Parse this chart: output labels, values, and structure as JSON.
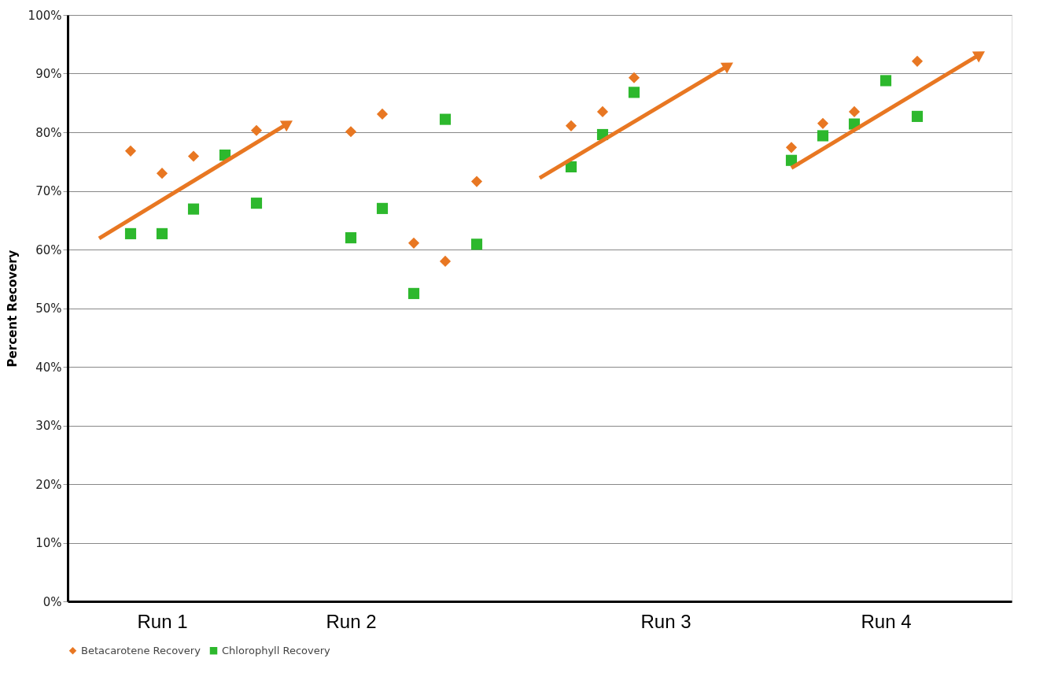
{
  "chart_data": {
    "type": "scatter",
    "ylabel": "Percent Recovery",
    "categories": [
      null,
      null,
      "Run 1",
      null,
      null,
      null,
      null,
      null,
      "Run 2",
      null,
      null,
      null,
      null,
      null,
      null,
      null,
      null,
      null,
      "Run 3",
      null,
      null,
      null,
      null,
      null,
      null,
      "Run 4",
      null,
      null,
      null
    ],
    "ylim": [
      0,
      100
    ],
    "yticks": [
      {
        "value": 0,
        "label": "0%"
      },
      {
        "value": 10,
        "label": "10%"
      },
      {
        "value": 20,
        "label": "20%"
      },
      {
        "value": 30,
        "label": "30%"
      },
      {
        "value": 40,
        "label": "40%"
      },
      {
        "value": 50,
        "label": "50%"
      },
      {
        "value": 60,
        "label": "60%"
      },
      {
        "value": 70,
        "label": "70%"
      },
      {
        "value": 80,
        "label": "80%"
      },
      {
        "value": 90,
        "label": "90%"
      },
      {
        "value": 100,
        "label": "100%"
      }
    ],
    "grid": "y",
    "legend": "bottom",
    "series": [
      {
        "name": "Betacarotene Recovery",
        "color": "#e87722",
        "marker": "diamond",
        "values": [
          null,
          76.8,
          73.0,
          75.9,
          null,
          80.3,
          null,
          null,
          80.1,
          83.1,
          61.1,
          58.0,
          71.6,
          null,
          null,
          81.1,
          83.5,
          89.3,
          null,
          null,
          null,
          null,
          77.4,
          81.5,
          83.5,
          null,
          92.1,
          null,
          null
        ]
      },
      {
        "name": "Chlorophyll Recovery",
        "color": "#2db82d",
        "marker": "square",
        "values": [
          null,
          62.7,
          62.7,
          66.9,
          76.1,
          67.9,
          null,
          null,
          62.0,
          67.0,
          52.5,
          82.2,
          60.9,
          null,
          null,
          74.1,
          79.6,
          86.8,
          null,
          null,
          null,
          null,
          75.2,
          79.4,
          81.4,
          88.8,
          82.7,
          null,
          null
        ]
      },
      {
        "type": "line",
        "color": "#e87722",
        "values": [
          61.9,
          null,
          null,
          null,
          null,
          null,
          81.5,
          null,
          null,
          null,
          null,
          null,
          null,
          null,
          72.2,
          null,
          null,
          null,
          null,
          null,
          91.4,
          null,
          73.9,
          null,
          null,
          null,
          null,
          null,
          93.3
        ]
      }
    ]
  }
}
